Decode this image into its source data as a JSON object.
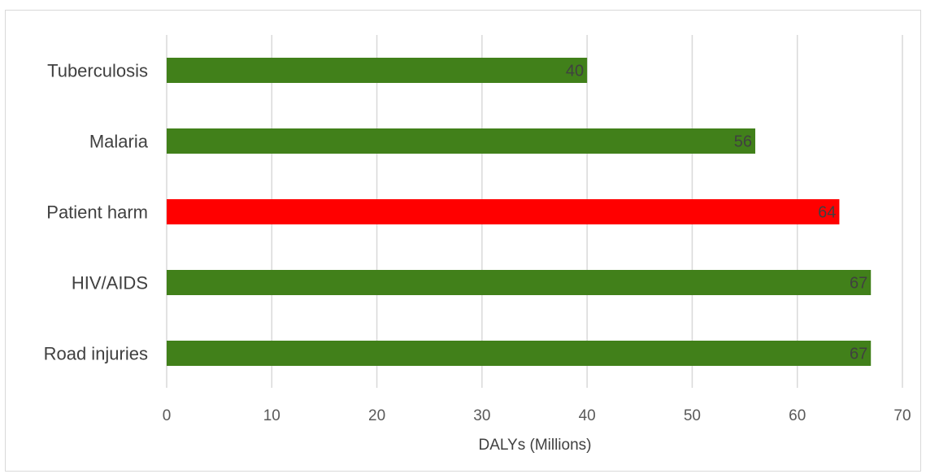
{
  "chart_data": {
    "type": "bar",
    "orientation": "horizontal",
    "categories": [
      "Tuberculosis",
      "Malaria",
      "Patient harm",
      "HIV/AIDS",
      "Road injuries"
    ],
    "values": [
      40,
      56,
      64,
      67,
      67
    ],
    "bar_colors": [
      "#41801a",
      "#41801a",
      "#ff0000",
      "#41801a",
      "#41801a"
    ],
    "data_labels": [
      "40",
      "56",
      "64",
      "67",
      "67"
    ],
    "xlabel": "DALYs (Millions)",
    "ylabel": "",
    "title": "",
    "xlim": [
      0,
      70
    ],
    "xticks": [
      0,
      10,
      20,
      30,
      40,
      50,
      60,
      70
    ],
    "xtick_labels": [
      "0",
      "10",
      "20",
      "30",
      "40",
      "50",
      "60",
      "70"
    ],
    "grid": "vertical",
    "legend": "none",
    "colors": {
      "default_bar": "#41801a",
      "highlight_bar": "#ff0000",
      "gridline": "#d9d9d9",
      "border": "#d9d9d9"
    }
  }
}
